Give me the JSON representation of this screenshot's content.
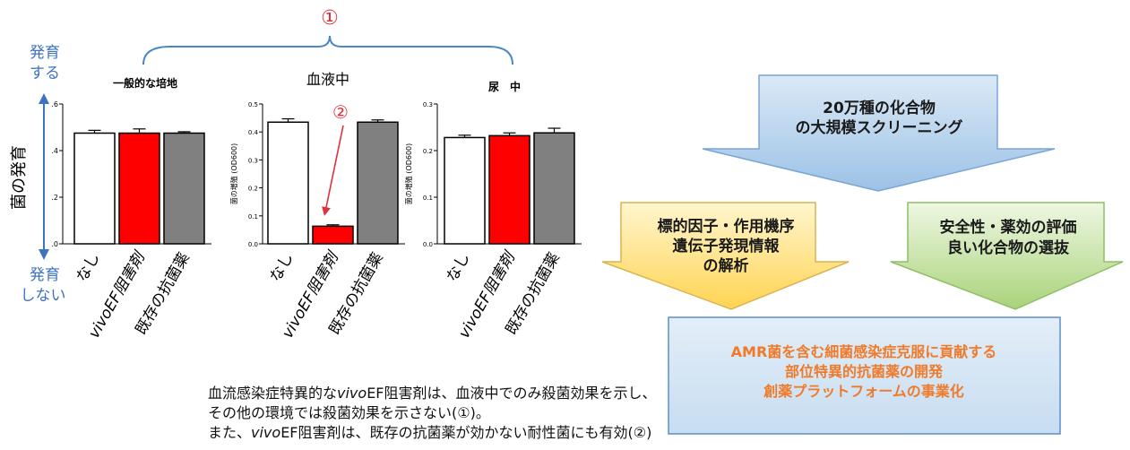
{
  "annotations": {
    "circle1": "①",
    "circle2": "②",
    "grow_top": [
      "発育",
      "する"
    ],
    "grow_bottom": [
      "発育",
      "しない"
    ],
    "y_axis_label": "菌の発育"
  },
  "chart_data": [
    {
      "type": "bar",
      "title": "一般的な培地",
      "categories": [
        "なし",
        "vivoEF阻害剤",
        "既存の抗菌薬"
      ],
      "values": [
        0.475,
        0.475,
        0.475
      ],
      "errors": [
        0.012,
        0.018,
        0.006
      ],
      "ylim": [
        0,
        0.6
      ],
      "yticks": [
        ".0",
        ".2",
        ".4",
        ".6"
      ],
      "ytick_values": [
        0,
        0.2,
        0.4,
        0.6
      ],
      "ylabel": "",
      "bar_colors": [
        "#ffffff",
        "#ff0000",
        "#808080"
      ]
    },
    {
      "type": "bar",
      "title": "血液中",
      "categories": [
        "なし",
        "vivoEF阻害剤",
        "既存の抗菌薬"
      ],
      "values": [
        0.435,
        0.063,
        0.435
      ],
      "errors": [
        0.012,
        0.005,
        0.008
      ],
      "ylim": [
        0,
        0.5
      ],
      "yticks": [
        "0.0",
        "0.1",
        "0.2",
        "0.3",
        "0.4",
        "0.5"
      ],
      "ytick_values": [
        0,
        0.1,
        0.2,
        0.3,
        0.4,
        0.5
      ],
      "ylabel": "菌の増殖 (OD600)",
      "bar_colors": [
        "#ffffff",
        "#ff0000",
        "#808080"
      ]
    },
    {
      "type": "bar",
      "title": "尿　中",
      "categories": [
        "なし",
        "vivoEF阻害剤",
        "既存の抗菌薬"
      ],
      "values": [
        0.228,
        0.232,
        0.238
      ],
      "errors": [
        0.005,
        0.006,
        0.01
      ],
      "ylim": [
        0,
        0.3
      ],
      "yticks": [
        "0.0",
        "0.1",
        "0.2",
        "0.3"
      ],
      "ytick_values": [
        0,
        0.1,
        0.2,
        0.3
      ],
      "ylabel": "菌の増殖 (OD600)",
      "bar_colors": [
        "#ffffff",
        "#ff0000",
        "#808080"
      ]
    }
  ],
  "caption": {
    "line1_a": "血流感染症特異的な",
    "line1_b": "vivo",
    "line1_c": "EF阻害剤は、血液中でのみ殺菌効果を示し、",
    "line2": "その他の環境では殺菌効果を示さない(①)。",
    "line3_a": "また、",
    "line3_b": "vivo",
    "line3_c": "EF阻害剤は、既存の抗菌薬が効かない耐性菌にも有効(②)"
  },
  "flow": {
    "top": [
      "20万種の化合物",
      "の大規模スクリーニング"
    ],
    "left": [
      "標的因子・作用機序",
      "遺伝子発現情報",
      "の解析"
    ],
    "right": [
      "安全性・薬効の評価",
      "良い化合物の選抜"
    ],
    "bottom": [
      "AMR菌を含む細菌感染症克服に貢献する",
      "部位特異的抗菌薬の開発",
      "創薬プラットフォームの事業化"
    ],
    "colors": {
      "bottom_text": "#f07a2a",
      "border": "#5b8fc8",
      "accent_blue": "#3e73c0"
    }
  }
}
